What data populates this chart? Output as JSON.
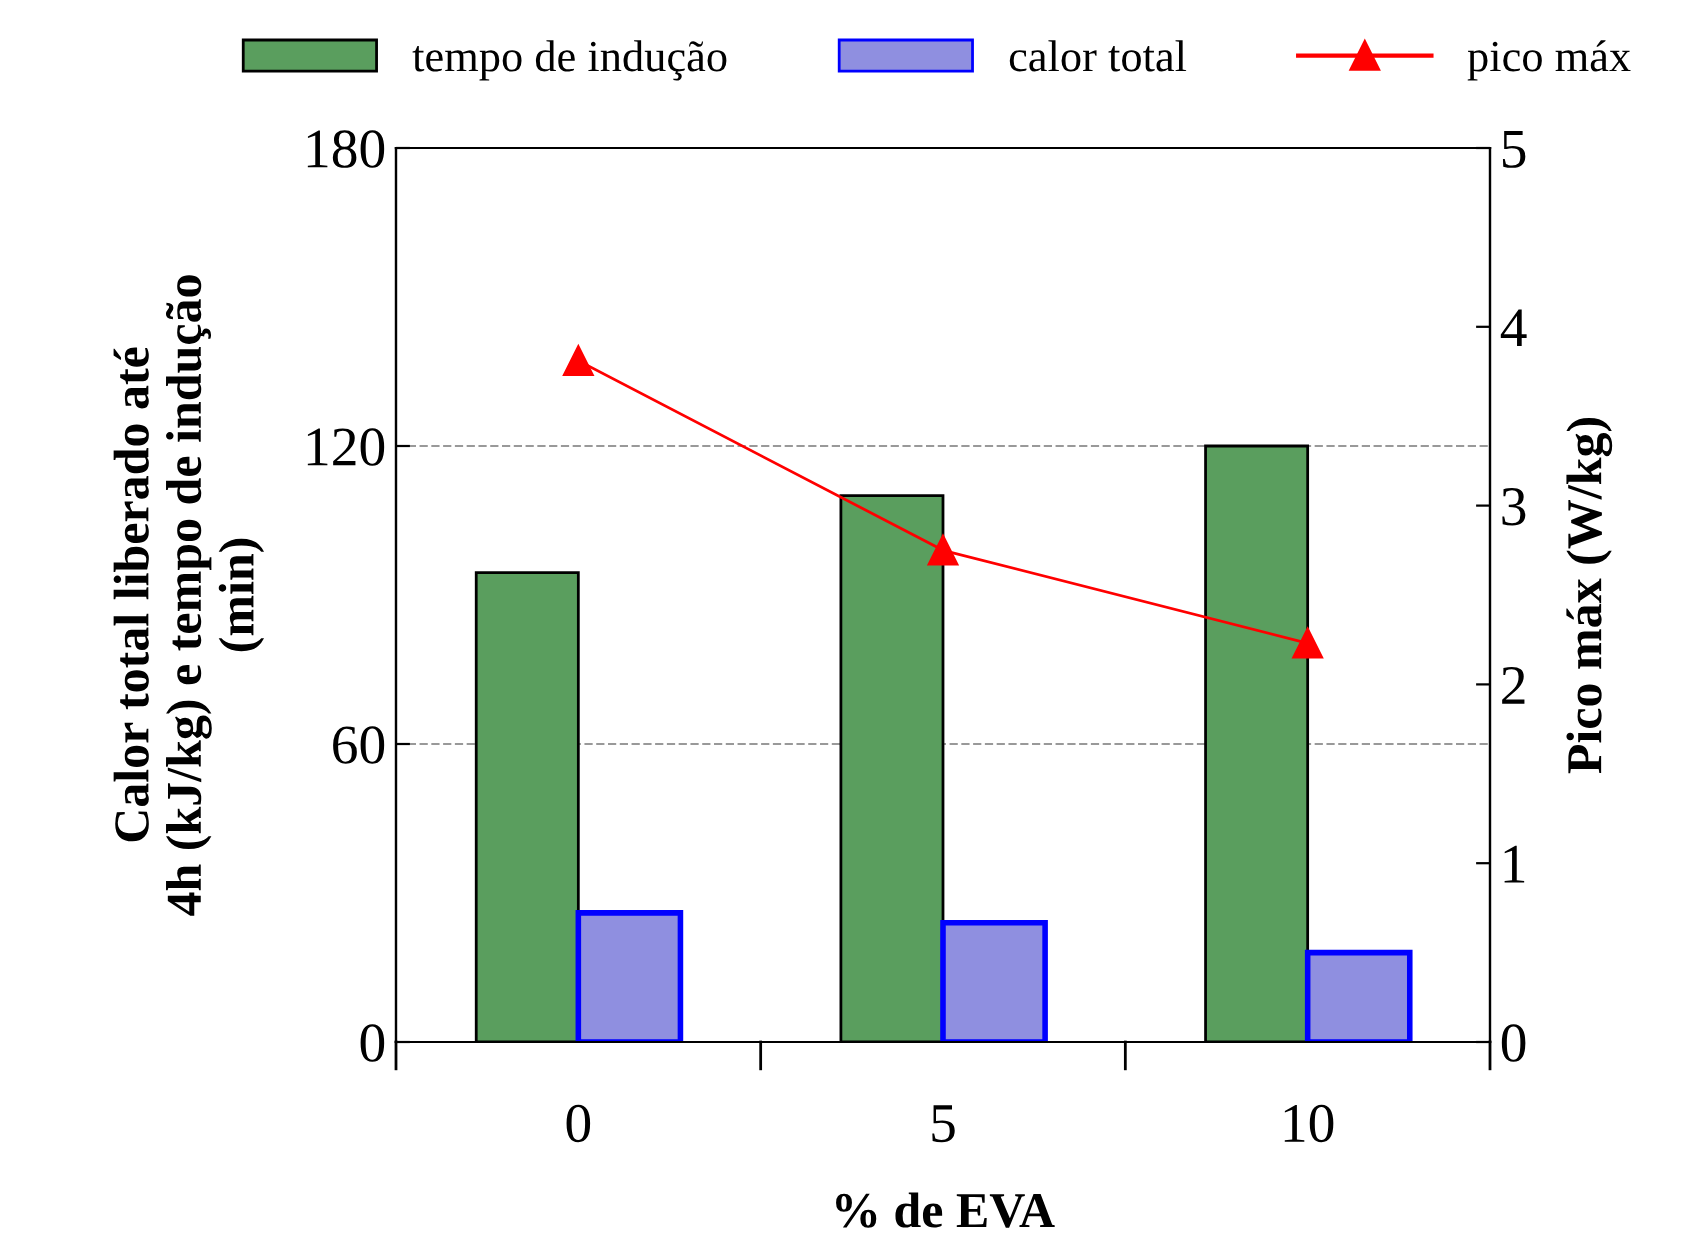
{
  "chart_data": {
    "type": "bar",
    "xlabel": "% de EVA",
    "ylabel": "Calor total liberado até\n4h (kJ/kg) e tempo de indução\n(min)",
    "y2label": "Pico máx (W/kg)",
    "categories": [
      "0",
      "5",
      "10"
    ],
    "series": [
      {
        "name": "tempo de indução",
        "color": "#5a9e5e",
        "values": [
          94.5,
          110,
          120
        ]
      },
      {
        "name": "calor total",
        "color": "#8f8fe0",
        "values": [
          26,
          24,
          18
        ]
      },
      {
        "name": "pico máx",
        "type": "line",
        "axis": "y2",
        "color": "#ff0000",
        "marker": "triangle",
        "values": [
          3.81,
          2.75,
          2.23
        ]
      }
    ],
    "ylim": [
      0,
      180
    ],
    "yticks": [
      0,
      60,
      120,
      180
    ],
    "y2lim": [
      0,
      5
    ],
    "y2ticks": [
      0,
      1,
      2,
      3,
      4,
      5
    ],
    "grid": "y",
    "legend": "top"
  }
}
